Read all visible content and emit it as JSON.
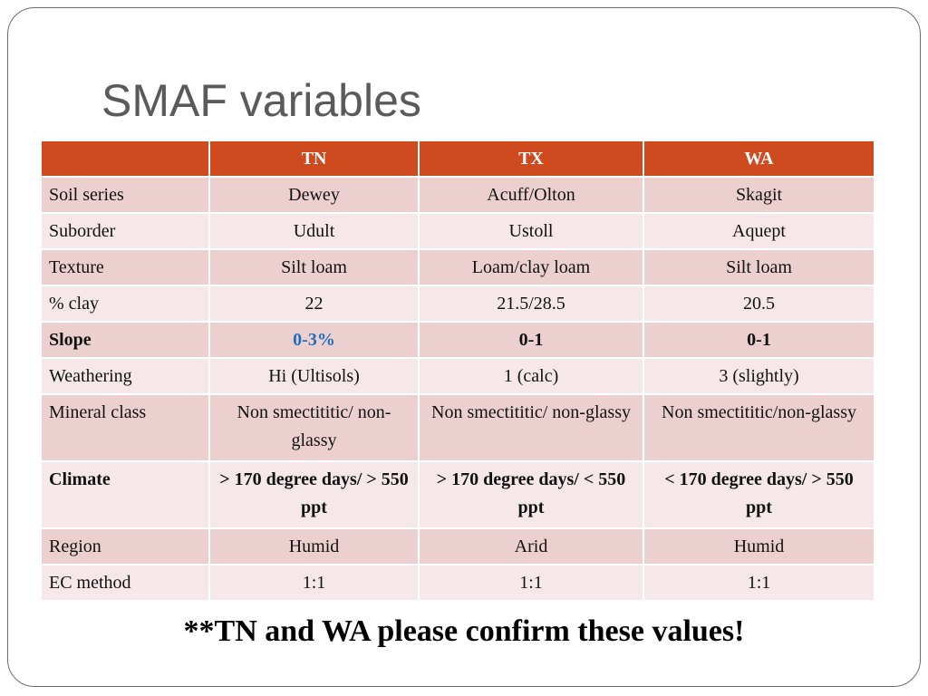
{
  "title": "SMAF variables",
  "table": {
    "headers": [
      "",
      "TN",
      "TX",
      "WA"
    ],
    "rows": [
      {
        "label": "Soil series",
        "values": [
          "Dewey",
          "Acuff/Olton",
          "Skagit"
        ]
      },
      {
        "label": "Suborder",
        "values": [
          "Udult",
          "Ustoll",
          "Aquept"
        ]
      },
      {
        "label": "Texture",
        "values": [
          "Silt loam",
          "Loam/clay loam",
          "Silt loam"
        ]
      },
      {
        "label": "% clay",
        "values": [
          "22",
          "21.5/28.5",
          "20.5"
        ]
      },
      {
        "label": "Slope",
        "values": [
          "0-3%",
          "0-1",
          "0-1"
        ]
      },
      {
        "label": "Weathering",
        "values": [
          "Hi (Ultisols)",
          "1 (calc)",
          "3 (slightly)"
        ]
      },
      {
        "label": "Mineral class",
        "values": [
          "Non smectititic/ non-glassy",
          "Non smectititic/ non-glassy",
          "Non smectititic/non-glassy"
        ]
      },
      {
        "label": "Climate",
        "values": [
          "> 170 degree days/ > 550 ppt",
          "> 170 degree days/ < 550 ppt",
          "< 170 degree days/ > 550 ppt"
        ]
      },
      {
        "label": "Region",
        "values": [
          "Humid",
          "Arid",
          "Humid"
        ]
      },
      {
        "label": "EC method",
        "values": [
          "1:1",
          "1:1",
          "1:1"
        ]
      }
    ]
  },
  "note": "**TN and WA please confirm these values!",
  "colors": {
    "header_bg": "#cf4a1e",
    "row_dark": "#ecd0cf",
    "row_light": "#f6e8e8",
    "accent_blue": "#1f6fc0",
    "title_gray": "#5a5a5a"
  }
}
